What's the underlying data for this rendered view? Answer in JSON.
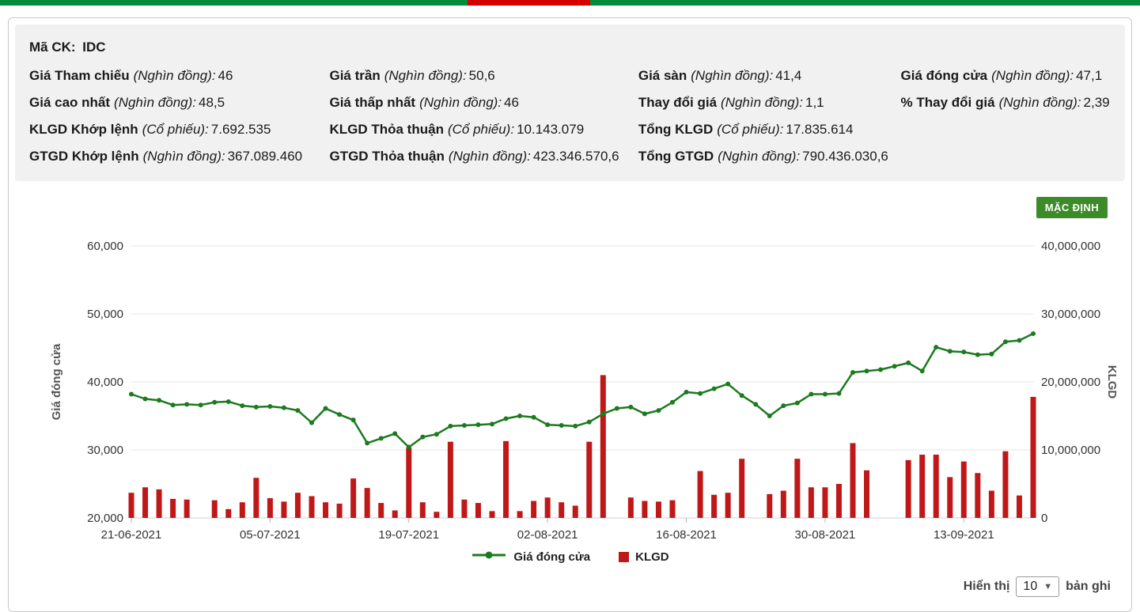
{
  "colors": {
    "top_bar_green": "#008c3a",
    "top_bar_red": "#d40000",
    "line_green": "#1c7a1f",
    "bar_red": "#c01818",
    "button_green": "#3d8b28"
  },
  "stock_info": {
    "code_label": "Mã CK:",
    "code_value": "IDC",
    "rows": [
      [
        {
          "label": "Giá Tham chiếu",
          "unit": "(Nghìn đồng):",
          "value": "46"
        },
        {
          "label": "Giá trần",
          "unit": "(Nghìn đồng):",
          "value": "50,6"
        },
        {
          "label": "Giá sàn",
          "unit": "(Nghìn đồng):",
          "value": "41,4"
        },
        {
          "label": "Giá đóng cửa",
          "unit": "(Nghìn đồng):",
          "value": "47,1"
        }
      ],
      [
        {
          "label": "Giá cao nhất",
          "unit": "(Nghìn đồng):",
          "value": "48,5"
        },
        {
          "label": "Giá thấp nhất",
          "unit": "(Nghìn đồng):",
          "value": "46"
        },
        {
          "label": "Thay đổi giá",
          "unit": "(Nghìn đồng):",
          "value": "1,1"
        },
        {
          "label": "% Thay đổi giá",
          "unit": "(Nghìn đồng):",
          "value": "2,39"
        }
      ],
      [
        {
          "label": "KLGD Khớp lệnh",
          "unit": "(Cổ phiếu):",
          "value": "7.692.535"
        },
        {
          "label": "KLGD Thỏa thuận",
          "unit": "(Cổ phiếu):",
          "value": "10.143.079"
        },
        {
          "label": "Tổng KLGD",
          "unit": "(Cổ phiếu):",
          "value": "17.835.614"
        },
        null
      ],
      [
        {
          "label": "GTGD Khớp lệnh",
          "unit": "(Nghìn đồng):",
          "value": "367.089.460"
        },
        {
          "label": "GTGD Thỏa thuận",
          "unit": "(Nghìn đồng):",
          "value": "423.346.570,6"
        },
        {
          "label": "Tổng GTGD",
          "unit": "(Nghìn đồng):",
          "value": "790.436.030,6"
        },
        null
      ]
    ]
  },
  "chart": {
    "default_button_label": "MẶC ĐỊNH"
  },
  "chart_data": {
    "type": "line",
    "title": "",
    "x_tick_indices": [
      0,
      10,
      20,
      30,
      40,
      50,
      60
    ],
    "x_tick_labels": [
      "21-06-2021",
      "05-07-2021",
      "19-07-2021",
      "02-08-2021",
      "16-08-2021",
      "30-08-2021",
      "13-09-2021"
    ],
    "y_left": {
      "title": "Giá đóng cửa",
      "min": 20000,
      "max": 60000,
      "tick_values": [
        20000,
        30000,
        40000,
        50000,
        60000
      ],
      "tick_labels": [
        "20,000",
        "30,000",
        "40,000",
        "50,000",
        "60,000"
      ]
    },
    "y_right": {
      "title": "KLGD",
      "min": 0,
      "max": 40000000,
      "tick_values": [
        0,
        10000000,
        20000000,
        30000000,
        40000000
      ],
      "tick_labels": [
        "0",
        "10,000,000",
        "20,000,000",
        "30,000,000",
        "40,000,000"
      ]
    },
    "grid": true,
    "legend_position": "bottom",
    "series": [
      {
        "name": "Giá đóng cửa",
        "kind": "line",
        "axis": "left",
        "color": "#1c7a1f",
        "values": [
          38200,
          37500,
          37300,
          36600,
          36700,
          36600,
          37000,
          37100,
          36500,
          36300,
          36400,
          36200,
          35800,
          34000,
          36100,
          35200,
          34400,
          31000,
          31700,
          32400,
          30400,
          31900,
          32300,
          33500,
          33600,
          33700,
          33800,
          34600,
          35000,
          34800,
          33700,
          33600,
          33500,
          34100,
          35300,
          36100,
          36300,
          35300,
          35800,
          37000,
          38500,
          38300,
          39000,
          39700,
          38000,
          36700,
          35000,
          36500,
          36900,
          38200,
          38200,
          38300,
          41400,
          41600,
          41800,
          42300,
          42800,
          41600,
          45100,
          44500,
          44400,
          44000,
          44100,
          45900,
          46100,
          47100
        ]
      },
      {
        "name": "KLGD",
        "kind": "bar",
        "axis": "right",
        "color": "#c01818",
        "values": [
          3700000,
          4500000,
          4200000,
          2800000,
          2700000,
          0,
          2600000,
          1300000,
          2300000,
          5900000,
          2900000,
          2400000,
          3700000,
          3200000,
          2300000,
          2100000,
          5800000,
          4400000,
          2200000,
          1100000,
          10300000,
          2300000,
          900000,
          11200000,
          2700000,
          2200000,
          1000000,
          11300000,
          1000000,
          2500000,
          3000000,
          2300000,
          1800000,
          11200000,
          21000000,
          0,
          3000000,
          2500000,
          2400000,
          2600000,
          0,
          6900000,
          3400000,
          3700000,
          8700000,
          0,
          3500000,
          4000000,
          8700000,
          4500000,
          4500000,
          5000000,
          11000000,
          7000000,
          0,
          0,
          8500000,
          9300000,
          9300000,
          6000000,
          8300000,
          6600000,
          4000000,
          9800000,
          3300000,
          17800000
        ]
      }
    ]
  },
  "footer": {
    "show_label": "Hiển thị",
    "page_size": "10",
    "records_label": "bản ghi"
  }
}
